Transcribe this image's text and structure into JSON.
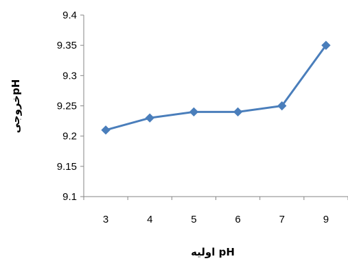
{
  "chart_data": {
    "type": "line",
    "categories": [
      "3",
      "4",
      "5",
      "6",
      "7",
      "9"
    ],
    "series": [
      {
        "values": [
          9.21,
          9.23,
          9.24,
          9.24,
          9.25,
          9.35
        ]
      }
    ],
    "xlabel": "pH اولیه",
    "ylabel": "pHخروجی",
    "ylim": [
      9.1,
      9.4
    ],
    "yticks": [
      "9.1",
      "9.15",
      "9.2",
      "9.25",
      "9.3",
      "9.35",
      "9.4"
    ],
    "grid": false,
    "legend": "none",
    "series_color": "#4a7ebb",
    "marker": "diamond"
  }
}
